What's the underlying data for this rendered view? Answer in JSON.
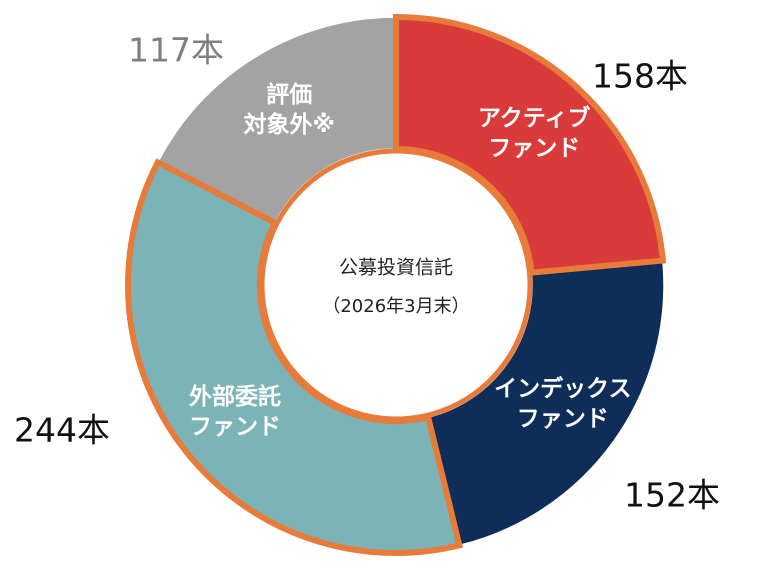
{
  "chart_data": {
    "type": "pie",
    "variant": "donut",
    "center_title": "公募投資信託",
    "center_subtitle": "（2026年3月末）",
    "unit": "本",
    "highlight_color": "#E87A3A",
    "segments": [
      {
        "key": "active",
        "label_lines": [
          "アクティブ",
          "ファンド"
        ],
        "value": 158,
        "count_text": "158本",
        "color": "#D93A3A",
        "count_color": "#111111",
        "highlighted": true
      },
      {
        "key": "index",
        "label_lines": [
          "インデックス",
          "ファンド"
        ],
        "value": 152,
        "count_text": "152本",
        "color": "#0E2D58",
        "count_color": "#111111",
        "highlighted": false
      },
      {
        "key": "external",
        "label_lines": [
          "外部委託",
          "ファンド"
        ],
        "value": 244,
        "count_text": "244本",
        "color": "#7BB3B6",
        "count_color": "#111111",
        "highlighted": true
      },
      {
        "key": "excluded",
        "label_lines": [
          "評価",
          "対象外※"
        ],
        "value": 117,
        "count_text": "117本",
        "color": "#A3A3A3",
        "count_color": "#7F7F7F",
        "highlighted": false
      }
    ]
  }
}
